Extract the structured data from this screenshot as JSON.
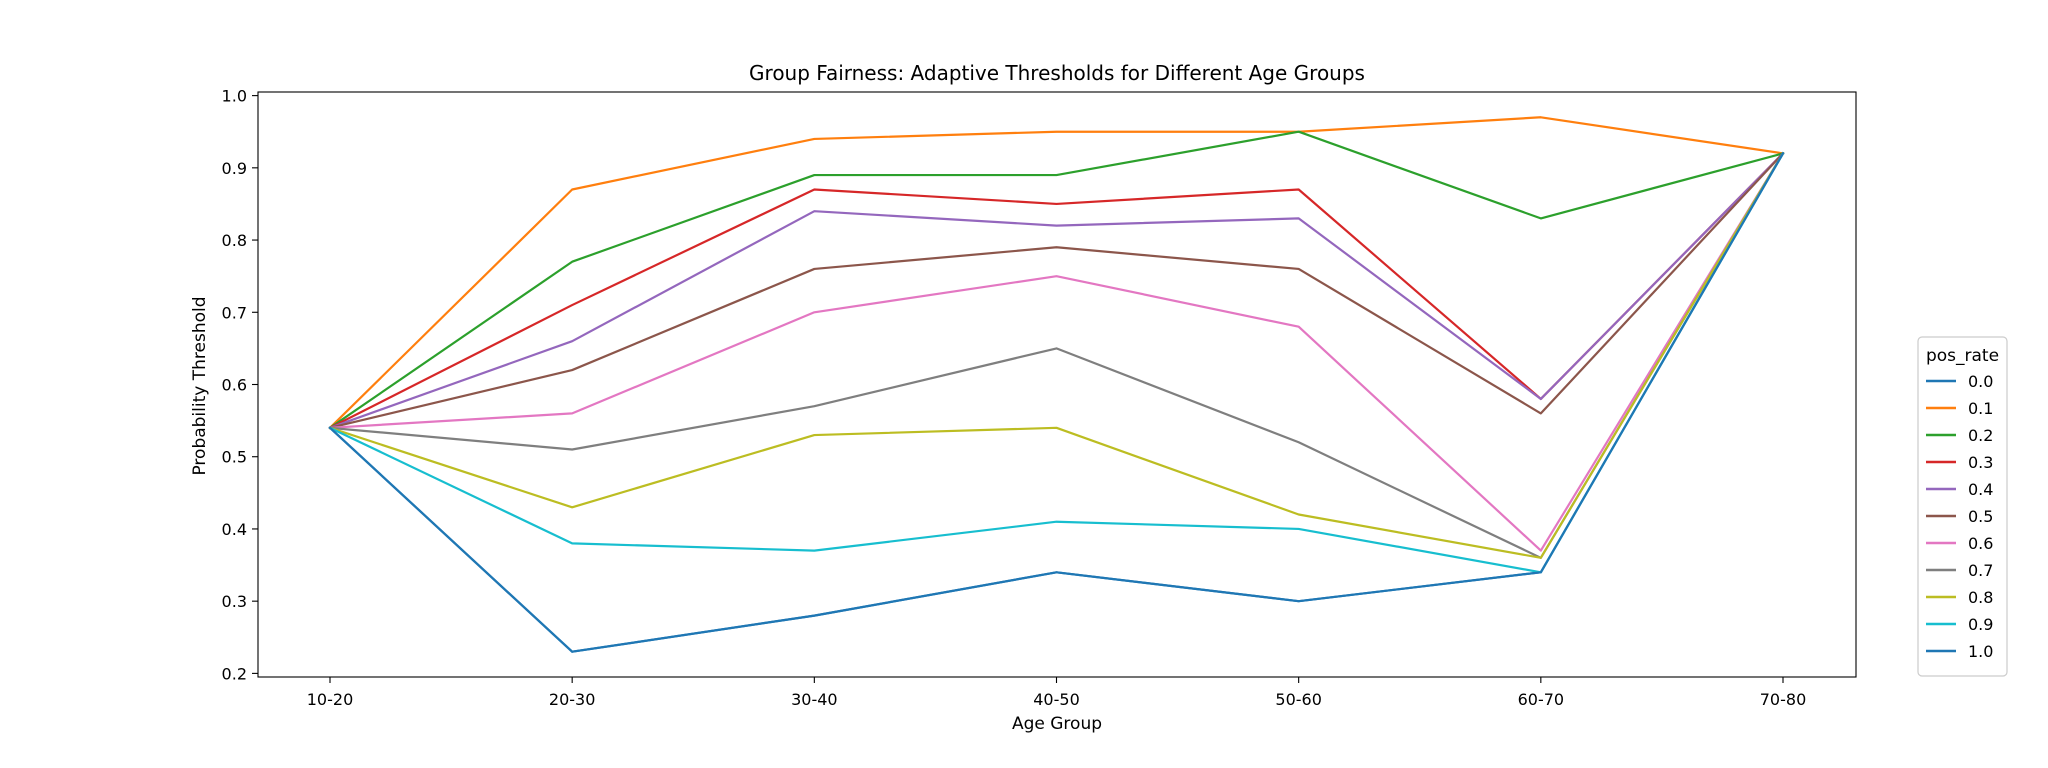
{
  "chart_data": {
    "type": "line",
    "title": "Group Fairness: Adaptive Thresholds for Different Age Groups",
    "xlabel": "Age Group",
    "ylabel": "Probability Threshold",
    "categories": [
      "10-20",
      "20-30",
      "30-40",
      "40-50",
      "50-60",
      "60-70",
      "70-80"
    ],
    "ylim": [
      0.195,
      1.005
    ],
    "yticks": [
      0.2,
      0.3,
      0.4,
      0.5,
      0.6,
      0.7,
      0.8,
      0.9,
      1.0
    ],
    "ytick_labels": [
      "0.2",
      "0.3",
      "0.4",
      "0.5",
      "0.6",
      "0.7",
      "0.8",
      "0.9",
      "1.0"
    ],
    "grid": false,
    "legend": {
      "title": "pos_rate",
      "placement": "center-right-outside"
    },
    "series": [
      {
        "name": "0.0",
        "color": "#1f77b4",
        "values": [
          0.54,
          0.23,
          0.28,
          0.34,
          0.3,
          0.34,
          0.92
        ]
      },
      {
        "name": "0.1",
        "color": "#ff7f0e",
        "values": [
          0.54,
          0.87,
          0.94,
          0.95,
          0.95,
          0.97,
          0.92
        ]
      },
      {
        "name": "0.2",
        "color": "#2ca02c",
        "values": [
          0.54,
          0.77,
          0.89,
          0.89,
          0.95,
          0.83,
          0.92
        ]
      },
      {
        "name": "0.3",
        "color": "#d62728",
        "values": [
          0.54,
          0.71,
          0.87,
          0.85,
          0.87,
          0.58,
          0.92
        ]
      },
      {
        "name": "0.4",
        "color": "#9467bd",
        "values": [
          0.54,
          0.66,
          0.84,
          0.82,
          0.83,
          0.58,
          0.92
        ]
      },
      {
        "name": "0.5",
        "color": "#8c564b",
        "values": [
          0.54,
          0.62,
          0.76,
          0.79,
          0.76,
          0.56,
          0.92
        ]
      },
      {
        "name": "0.6",
        "color": "#e377c2",
        "values": [
          0.54,
          0.56,
          0.7,
          0.75,
          0.68,
          0.37,
          0.92
        ]
      },
      {
        "name": "0.7",
        "color": "#7f7f7f",
        "values": [
          0.54,
          0.51,
          0.57,
          0.65,
          0.52,
          0.36,
          0.92
        ]
      },
      {
        "name": "0.8",
        "color": "#bcbd22",
        "values": [
          0.54,
          0.43,
          0.53,
          0.54,
          0.42,
          0.36,
          0.92
        ]
      },
      {
        "name": "0.9",
        "color": "#17becf",
        "values": [
          0.54,
          0.38,
          0.37,
          0.41,
          0.4,
          0.34,
          0.92
        ]
      },
      {
        "name": "1.0",
        "color": "#1f77b4",
        "values": [
          0.54,
          0.23,
          0.28,
          0.34,
          0.3,
          0.34,
          0.92
        ]
      }
    ]
  }
}
